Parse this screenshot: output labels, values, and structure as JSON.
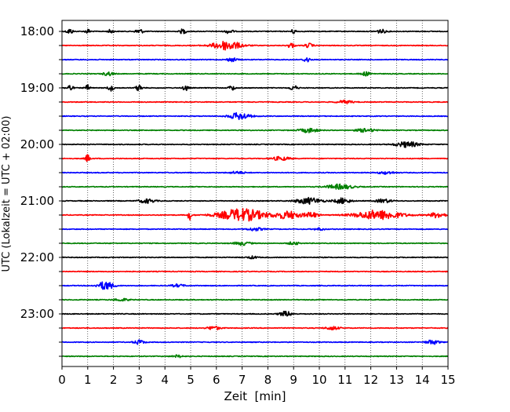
{
  "chart_data": {
    "type": "line",
    "title": "",
    "xlabel": "Zeit  [min]",
    "ylabel": "UTC (Lokalzeit = UTC + 02:00)",
    "xlim": [
      0,
      15
    ],
    "x_ticks": [
      0,
      1,
      2,
      3,
      4,
      5,
      6,
      7,
      8,
      9,
      10,
      11,
      12,
      13,
      14,
      15
    ],
    "y_tick_labels": [
      "18:00",
      "19:00",
      "20:00",
      "21:00",
      "22:00",
      "23:00"
    ],
    "grid": "vertical dotted lines at each minute",
    "legend": "none",
    "trace_colors": [
      "#000000",
      "#ff0000",
      "#0000ff",
      "#008000"
    ],
    "traces": [
      {
        "start": "18:00",
        "color": "#000000",
        "bursts": [
          {
            "x": 0.3,
            "w": 0.12,
            "a": 0.45
          },
          {
            "x": 1.0,
            "w": 0.1,
            "a": 0.35
          },
          {
            "x": 1.9,
            "w": 0.1,
            "a": 0.35
          },
          {
            "x": 3.0,
            "w": 0.15,
            "a": 0.4
          },
          {
            "x": 4.7,
            "w": 0.12,
            "a": 0.4
          },
          {
            "x": 6.5,
            "w": 0.15,
            "a": 0.35
          },
          {
            "x": 9.0,
            "w": 0.1,
            "a": 0.35
          },
          {
            "x": 12.4,
            "w": 0.2,
            "a": 0.3
          }
        ]
      },
      {
        "start": "18:15",
        "color": "#ff0000",
        "bursts": [
          {
            "x": 6.4,
            "w": 0.55,
            "a": 0.75
          },
          {
            "x": 8.9,
            "w": 0.12,
            "a": 0.45
          },
          {
            "x": 9.6,
            "w": 0.15,
            "a": 0.35
          }
        ]
      },
      {
        "start": "18:30",
        "color": "#0000ff",
        "bursts": [
          {
            "x": 6.6,
            "w": 0.2,
            "a": 0.3
          },
          {
            "x": 9.5,
            "w": 0.12,
            "a": 0.45
          }
        ]
      },
      {
        "start": "18:45",
        "color": "#008000",
        "bursts": [
          {
            "x": 1.8,
            "w": 0.2,
            "a": 0.3
          },
          {
            "x": 11.8,
            "w": 0.2,
            "a": 0.3
          }
        ]
      },
      {
        "start": "19:00",
        "color": "#000000",
        "bursts": [
          {
            "x": 0.3,
            "w": 0.12,
            "a": 0.5
          },
          {
            "x": 1.0,
            "w": 0.1,
            "a": 0.45
          },
          {
            "x": 1.9,
            "w": 0.12,
            "a": 0.45
          },
          {
            "x": 3.0,
            "w": 0.12,
            "a": 0.5
          },
          {
            "x": 4.8,
            "w": 0.1,
            "a": 0.5
          },
          {
            "x": 6.6,
            "w": 0.12,
            "a": 0.4
          },
          {
            "x": 9.0,
            "w": 0.15,
            "a": 0.4
          }
        ]
      },
      {
        "start": "19:15",
        "color": "#ff0000",
        "bursts": [
          {
            "x": 11.0,
            "w": 0.3,
            "a": 0.25
          }
        ]
      },
      {
        "start": "19:30",
        "color": "#0000ff",
        "bursts": [
          {
            "x": 6.9,
            "w": 0.4,
            "a": 0.55
          }
        ]
      },
      {
        "start": "19:45",
        "color": "#008000",
        "bursts": [
          {
            "x": 9.6,
            "w": 0.35,
            "a": 0.35
          },
          {
            "x": 11.8,
            "w": 0.35,
            "a": 0.3
          }
        ]
      },
      {
        "start": "20:00",
        "color": "#000000",
        "bursts": [
          {
            "x": 13.4,
            "w": 0.45,
            "a": 0.45
          }
        ]
      },
      {
        "start": "20:15",
        "color": "#ff0000",
        "bursts": [
          {
            "x": 1.0,
            "w": 0.1,
            "a": 0.6
          },
          {
            "x": 8.5,
            "w": 0.35,
            "a": 0.3
          }
        ]
      },
      {
        "start": "20:30",
        "color": "#0000ff",
        "bursts": [
          {
            "x": 6.8,
            "w": 0.3,
            "a": 0.2
          },
          {
            "x": 12.6,
            "w": 0.3,
            "a": 0.22
          }
        ]
      },
      {
        "start": "20:45",
        "color": "#008000",
        "bursts": [
          {
            "x": 10.8,
            "w": 0.5,
            "a": 0.4
          }
        ]
      },
      {
        "start": "21:00",
        "color": "#000000",
        "bursts": [
          {
            "x": 3.3,
            "w": 0.3,
            "a": 0.35
          },
          {
            "x": 9.6,
            "w": 0.5,
            "a": 0.5
          },
          {
            "x": 10.9,
            "w": 0.3,
            "a": 0.45
          },
          {
            "x": 12.5,
            "w": 0.3,
            "a": 0.3
          }
        ]
      },
      {
        "start": "21:15",
        "color": "#ff0000",
        "bursts": [
          {
            "x": 4.95,
            "w": 0.06,
            "a": 1.0
          },
          {
            "x": 7.0,
            "w": 0.9,
            "a": 1.0
          },
          {
            "x": 8.8,
            "w": 0.5,
            "a": 0.6
          },
          {
            "x": 9.7,
            "w": 0.25,
            "a": 0.45
          },
          {
            "x": 12.3,
            "w": 0.9,
            "a": 0.75
          },
          {
            "x": 14.6,
            "w": 0.3,
            "a": 0.45
          }
        ]
      },
      {
        "start": "21:30",
        "color": "#0000ff",
        "bursts": [
          {
            "x": 7.5,
            "w": 0.3,
            "a": 0.25
          },
          {
            "x": 10.0,
            "w": 0.2,
            "a": 0.2
          }
        ]
      },
      {
        "start": "21:45",
        "color": "#008000",
        "bursts": [
          {
            "x": 7.0,
            "w": 0.3,
            "a": 0.3
          },
          {
            "x": 9.0,
            "w": 0.2,
            "a": 0.25
          }
        ]
      },
      {
        "start": "22:00",
        "color": "#000000",
        "bursts": [
          {
            "x": 7.4,
            "w": 0.2,
            "a": 0.2
          }
        ]
      },
      {
        "start": "22:15",
        "color": "#ff0000",
        "bursts": []
      },
      {
        "start": "22:30",
        "color": "#0000ff",
        "bursts": [
          {
            "x": 1.7,
            "w": 0.3,
            "a": 0.7
          },
          {
            "x": 4.5,
            "w": 0.25,
            "a": 0.22
          }
        ]
      },
      {
        "start": "22:45",
        "color": "#008000",
        "bursts": [
          {
            "x": 2.3,
            "w": 0.3,
            "a": 0.2
          }
        ]
      },
      {
        "start": "23:00",
        "color": "#000000",
        "bursts": [
          {
            "x": 8.7,
            "w": 0.25,
            "a": 0.4
          }
        ]
      },
      {
        "start": "23:15",
        "color": "#ff0000",
        "bursts": [
          {
            "x": 5.9,
            "w": 0.25,
            "a": 0.3
          },
          {
            "x": 10.5,
            "w": 0.25,
            "a": 0.3
          }
        ]
      },
      {
        "start": "23:30",
        "color": "#0000ff",
        "bursts": [
          {
            "x": 3.0,
            "w": 0.2,
            "a": 0.35
          },
          {
            "x": 14.4,
            "w": 0.25,
            "a": 0.35
          }
        ]
      },
      {
        "start": "23:45",
        "color": "#008000",
        "bursts": [
          {
            "x": 4.5,
            "w": 0.2,
            "a": 0.2
          }
        ]
      }
    ]
  }
}
